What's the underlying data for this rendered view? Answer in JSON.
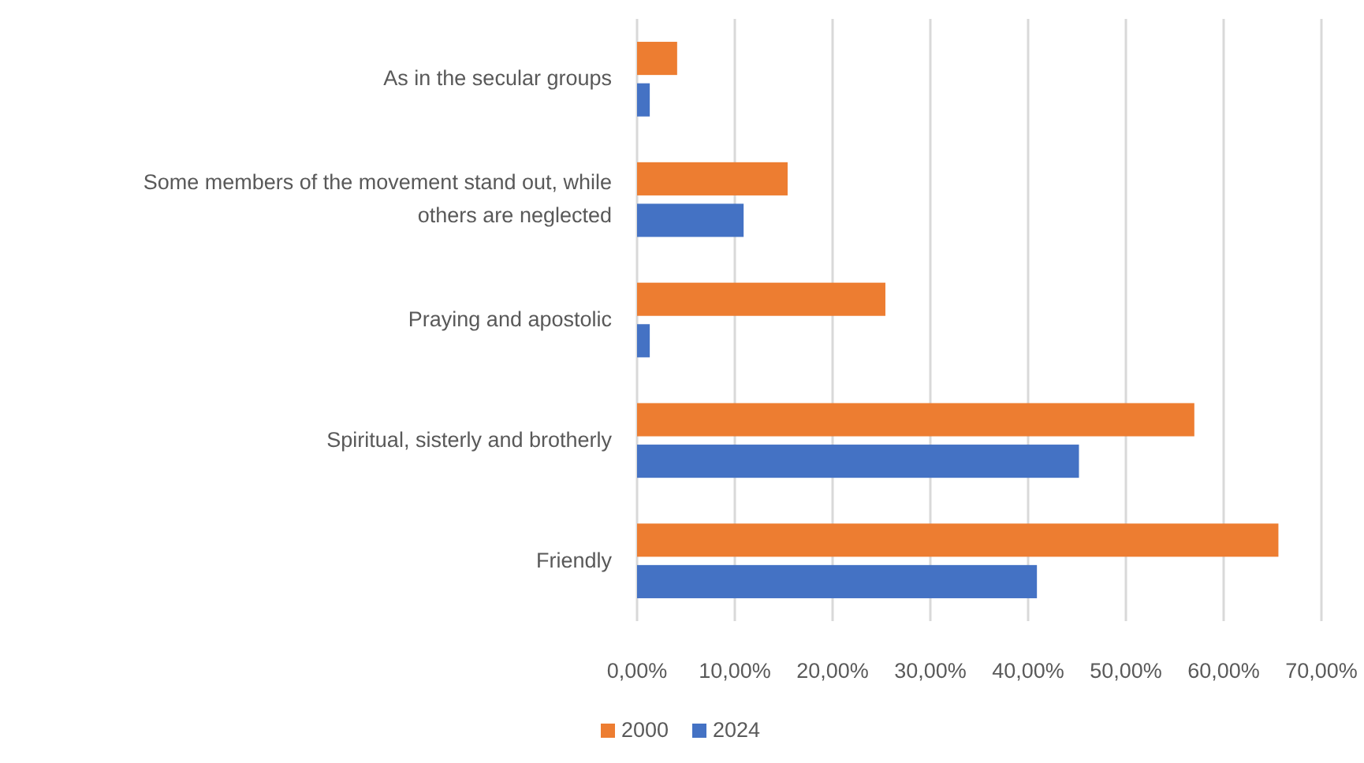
{
  "chart_data": {
    "type": "bar",
    "orientation": "horizontal",
    "categories": [
      "As in the secular groups",
      "Some members of the movement stand out, while others are neglected",
      "Praying and apostolic",
      "Spiritual, sisterly and brotherly",
      "Friendly"
    ],
    "series": [
      {
        "name": "2000",
        "color": "#ed7d31",
        "values": [
          4.1,
          15.4,
          25.4,
          57.0,
          65.6
        ]
      },
      {
        "name": "2024",
        "color": "#4472c4",
        "values": [
          1.3,
          10.9,
          1.3,
          45.2,
          40.9
        ]
      }
    ],
    "xlim": [
      0,
      70
    ],
    "xticks": [
      {
        "value": 0,
        "label": "0,00%"
      },
      {
        "value": 10,
        "label": "10,00%"
      },
      {
        "value": 20,
        "label": "20,00%"
      },
      {
        "value": 30,
        "label": "30,00%"
      },
      {
        "value": 40,
        "label": "40,00%"
      },
      {
        "value": 50,
        "label": "50,00%"
      },
      {
        "value": 60,
        "label": "60,00%"
      },
      {
        "value": 70,
        "label": "70,00%"
      }
    ],
    "grid": "x",
    "legend": "bottom"
  }
}
